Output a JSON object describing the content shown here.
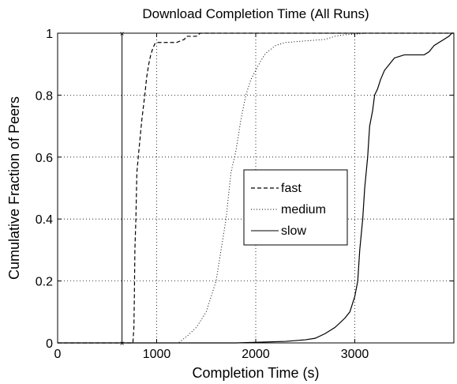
{
  "chart_data": {
    "type": "line",
    "title": "Download Completion Time (All Runs)",
    "xlabel": "Completion Time (s)",
    "ylabel": "Cumulative Fraction of Peers",
    "xlim": [
      0,
      4000
    ],
    "ylim": [
      0,
      1
    ],
    "xticks": [
      0,
      1000,
      2000,
      3000
    ],
    "xtick_labels": [
      "0",
      "1000",
      "2000",
      "3000"
    ],
    "yticks": [
      0,
      0.2,
      0.4,
      0.6,
      0.8,
      1
    ],
    "ytick_labels": [
      "0",
      "0.2",
      "0.4",
      "0.6",
      "0.8",
      "1"
    ],
    "grid": true,
    "legend": "center-right",
    "vertical_marker_x": 650,
    "series": [
      {
        "name": "fast",
        "style": "dashed",
        "color": "#000000",
        "x": [
          760,
          770,
          775,
          780,
          790,
          800,
          820,
          850,
          880,
          900,
          920,
          940,
          960,
          980,
          1000,
          1010,
          1100,
          1200,
          1240,
          1280,
          1300,
          1400,
          1420,
          1440
        ],
        "y": [
          0,
          0.05,
          0.15,
          0.3,
          0.4,
          0.55,
          0.62,
          0.72,
          0.8,
          0.86,
          0.9,
          0.93,
          0.95,
          0.965,
          0.97,
          0.97,
          0.97,
          0.97,
          0.975,
          0.98,
          0.99,
          0.99,
          0.995,
          1.0
        ]
      },
      {
        "name": "medium",
        "style": "dotted",
        "color": "#000000",
        "x": [
          1220,
          1300,
          1400,
          1500,
          1600,
          1650,
          1700,
          1750,
          1800,
          1820,
          1850,
          1900,
          1950,
          2000,
          2050,
          2100,
          2200,
          2300,
          2500,
          2700,
          2800,
          2900,
          3000,
          3050,
          3100
        ],
        "y": [
          0,
          0.02,
          0.05,
          0.1,
          0.2,
          0.3,
          0.4,
          0.55,
          0.62,
          0.66,
          0.72,
          0.8,
          0.85,
          0.88,
          0.91,
          0.935,
          0.96,
          0.97,
          0.975,
          0.98,
          0.99,
          0.995,
          0.997,
          0.998,
          1.0
        ]
      },
      {
        "name": "slow",
        "style": "solid",
        "color": "#000000",
        "x": [
          1800,
          2300,
          2500,
          2600,
          2700,
          2800,
          2900,
          2950,
          3000,
          3030,
          3050,
          3080,
          3100,
          3130,
          3150,
          3180,
          3200,
          3230,
          3260,
          3300,
          3350,
          3400,
          3500,
          3600,
          3700,
          3750,
          3800,
          3850,
          3900,
          3950,
          3980
        ],
        "y": [
          0,
          0.005,
          0.01,
          0.015,
          0.03,
          0.05,
          0.08,
          0.1,
          0.15,
          0.2,
          0.3,
          0.4,
          0.5,
          0.6,
          0.7,
          0.75,
          0.8,
          0.82,
          0.85,
          0.88,
          0.9,
          0.92,
          0.93,
          0.93,
          0.93,
          0.94,
          0.96,
          0.97,
          0.98,
          0.99,
          1.0
        ]
      }
    ]
  }
}
